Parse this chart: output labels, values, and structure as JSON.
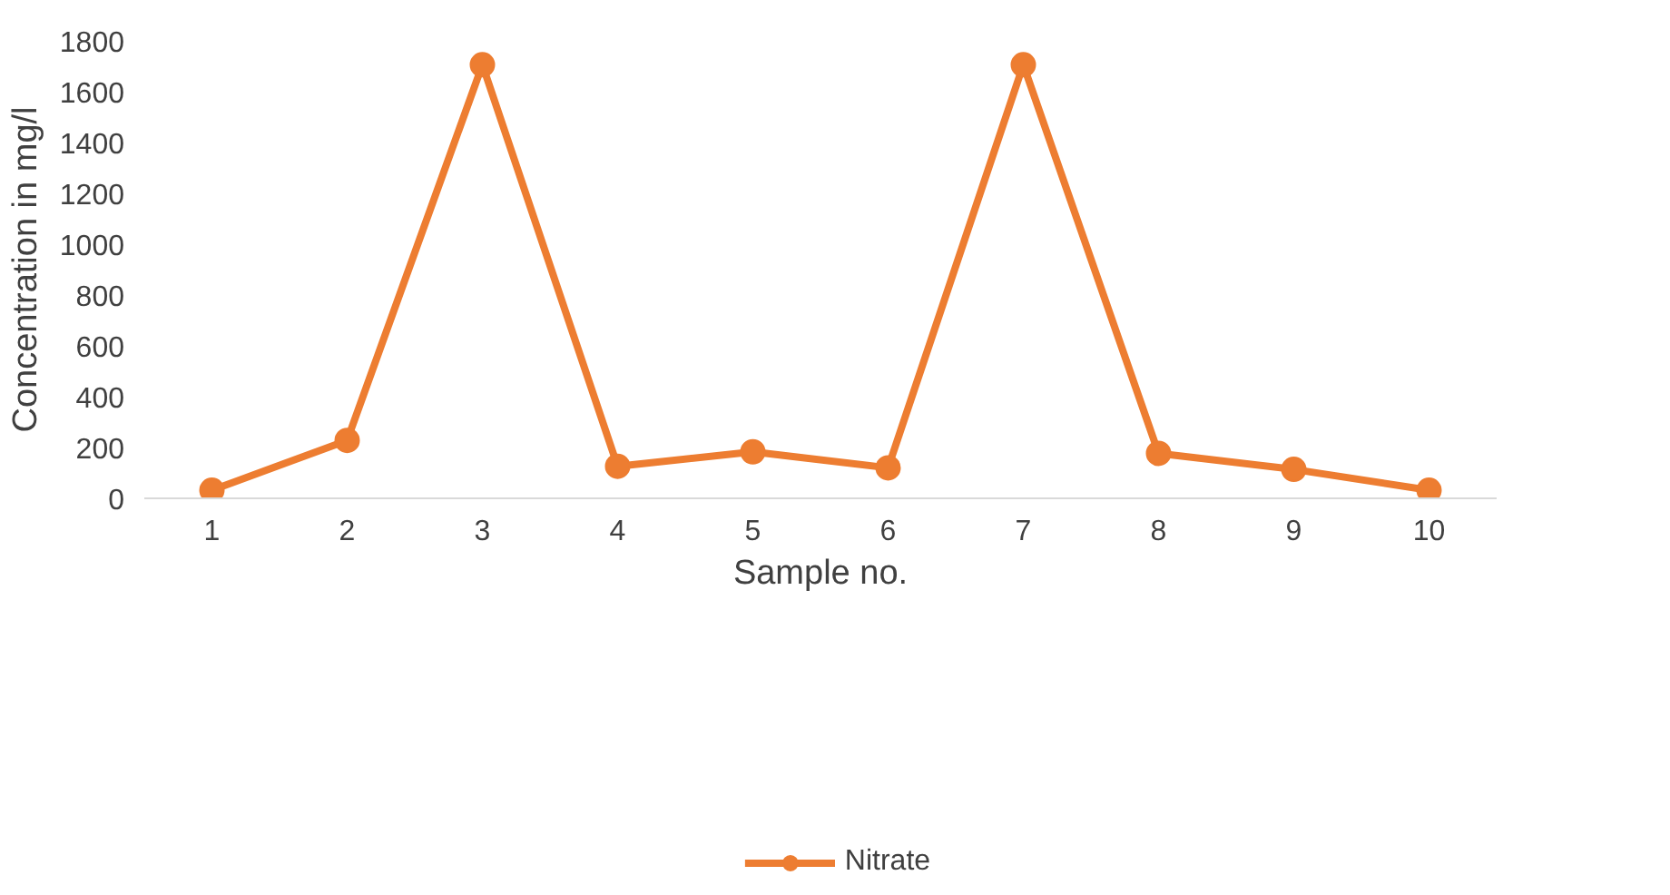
{
  "chart_data": {
    "type": "line",
    "xlabel": "Sample no.",
    "ylabel": "Concentration in mg/l",
    "categories": [
      "1",
      "2",
      "3",
      "4",
      "5",
      "6",
      "7",
      "8",
      "9",
      "10"
    ],
    "series": [
      {
        "name": "Nitrate",
        "color": "#ed7d31",
        "values": [
          32,
          228,
          1706,
          126,
          183,
          120,
          1706,
          177,
          114,
          32
        ]
      }
    ],
    "ylim": [
      0,
      1800
    ],
    "yticks": [
      0,
      200,
      400,
      600,
      800,
      1000,
      1200,
      1400,
      1600,
      1800
    ],
    "grid": false,
    "legend": "bottom",
    "marker": "circle",
    "line_style": "solid"
  }
}
